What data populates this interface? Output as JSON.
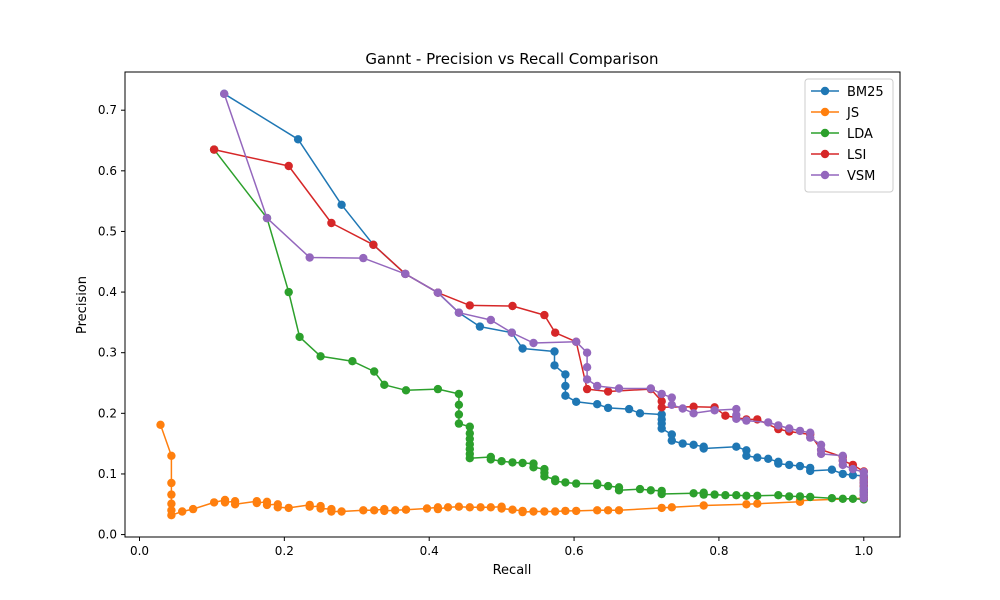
{
  "chart_data": {
    "type": "line",
    "title": "Gannt - Precision vs Recall Comparison",
    "xlabel": "Recall",
    "ylabel": "Precision",
    "xlim": [
      -0.02,
      1.05
    ],
    "ylim": [
      -0.004,
      0.763
    ],
    "xticks": [
      "0.0",
      "0.2",
      "0.4",
      "0.6",
      "0.8",
      "1.0"
    ],
    "yticks": [
      "0.0",
      "0.1",
      "0.2",
      "0.3",
      "0.4",
      "0.5",
      "0.6",
      "0.7"
    ],
    "grid": false,
    "legend": "upper right",
    "series": [
      {
        "name": "BM25",
        "color": "#1f77b4",
        "points": [
          [
            0.117,
            0.727
          ],
          [
            0.219,
            0.652
          ],
          [
            0.279,
            0.544
          ],
          [
            0.323,
            0.478
          ],
          [
            0.367,
            0.43
          ],
          [
            0.412,
            0.399
          ],
          [
            0.441,
            0.366
          ],
          [
            0.47,
            0.343
          ],
          [
            0.514,
            0.333
          ],
          [
            0.529,
            0.307
          ],
          [
            0.573,
            0.302
          ],
          [
            0.573,
            0.279
          ],
          [
            0.588,
            0.264
          ],
          [
            0.588,
            0.245
          ],
          [
            0.588,
            0.229
          ],
          [
            0.603,
            0.219
          ],
          [
            0.632,
            0.215
          ],
          [
            0.647,
            0.209
          ],
          [
            0.676,
            0.207
          ],
          [
            0.691,
            0.2
          ],
          [
            0.721,
            0.198
          ],
          [
            0.721,
            0.19
          ],
          [
            0.721,
            0.183
          ],
          [
            0.721,
            0.175
          ],
          [
            0.735,
            0.165
          ],
          [
            0.735,
            0.155
          ],
          [
            0.75,
            0.15
          ],
          [
            0.765,
            0.148
          ],
          [
            0.779,
            0.145
          ],
          [
            0.779,
            0.142
          ],
          [
            0.824,
            0.145
          ],
          [
            0.838,
            0.139
          ],
          [
            0.838,
            0.13
          ],
          [
            0.853,
            0.127
          ],
          [
            0.868,
            0.125
          ],
          [
            0.882,
            0.12
          ],
          [
            0.882,
            0.117
          ],
          [
            0.897,
            0.115
          ],
          [
            0.912,
            0.113
          ],
          [
            0.926,
            0.11
          ],
          [
            0.926,
            0.105
          ],
          [
            0.956,
            0.107
          ],
          [
            0.971,
            0.1
          ],
          [
            0.985,
            0.098
          ],
          [
            1.0,
            0.097
          ],
          [
            1.0,
            0.09
          ],
          [
            1.0,
            0.085
          ],
          [
            1.0,
            0.08
          ],
          [
            1.0,
            0.075
          ],
          [
            1.0,
            0.07
          ],
          [
            1.0,
            0.065
          ],
          [
            1.0,
            0.06
          ]
        ]
      },
      {
        "name": "JS",
        "color": "#ff7f0e",
        "points": [
          [
            0.029,
            0.181
          ],
          [
            0.044,
            0.13
          ],
          [
            0.044,
            0.085
          ],
          [
            0.044,
            0.066
          ],
          [
            0.044,
            0.051
          ],
          [
            0.044,
            0.04
          ],
          [
            0.044,
            0.032
          ],
          [
            0.059,
            0.038
          ],
          [
            0.074,
            0.042
          ],
          [
            0.103,
            0.053
          ],
          [
            0.118,
            0.057
          ],
          [
            0.118,
            0.053
          ],
          [
            0.132,
            0.055
          ],
          [
            0.132,
            0.05
          ],
          [
            0.162,
            0.055
          ],
          [
            0.162,
            0.052
          ],
          [
            0.176,
            0.054
          ],
          [
            0.176,
            0.049
          ],
          [
            0.191,
            0.05
          ],
          [
            0.191,
            0.045
          ],
          [
            0.206,
            0.044
          ],
          [
            0.235,
            0.049
          ],
          [
            0.235,
            0.046
          ],
          [
            0.25,
            0.047
          ],
          [
            0.25,
            0.043
          ],
          [
            0.265,
            0.042
          ],
          [
            0.265,
            0.038
          ],
          [
            0.279,
            0.038
          ],
          [
            0.309,
            0.04
          ],
          [
            0.324,
            0.04
          ],
          [
            0.338,
            0.042
          ],
          [
            0.338,
            0.039
          ],
          [
            0.353,
            0.04
          ],
          [
            0.368,
            0.041
          ],
          [
            0.397,
            0.043
          ],
          [
            0.412,
            0.045
          ],
          [
            0.412,
            0.042
          ],
          [
            0.426,
            0.045
          ],
          [
            0.441,
            0.046
          ],
          [
            0.456,
            0.045
          ],
          [
            0.471,
            0.045
          ],
          [
            0.485,
            0.045
          ],
          [
            0.5,
            0.046
          ],
          [
            0.5,
            0.043
          ],
          [
            0.515,
            0.041
          ],
          [
            0.529,
            0.039
          ],
          [
            0.529,
            0.037
          ],
          [
            0.544,
            0.038
          ],
          [
            0.559,
            0.038
          ],
          [
            0.574,
            0.038
          ],
          [
            0.588,
            0.039
          ],
          [
            0.603,
            0.039
          ],
          [
            0.632,
            0.04
          ],
          [
            0.647,
            0.04
          ],
          [
            0.662,
            0.04
          ],
          [
            0.721,
            0.044
          ],
          [
            0.735,
            0.045
          ],
          [
            0.779,
            0.048
          ],
          [
            0.838,
            0.05
          ],
          [
            0.853,
            0.051
          ],
          [
            0.912,
            0.054
          ],
          [
            0.912,
            0.056
          ],
          [
            1.0,
            0.06
          ]
        ]
      },
      {
        "name": "LDA",
        "color": "#2ca02c",
        "points": [
          [
            0.103,
            0.635
          ],
          [
            0.176,
            0.522
          ],
          [
            0.206,
            0.4
          ],
          [
            0.221,
            0.326
          ],
          [
            0.25,
            0.294
          ],
          [
            0.294,
            0.286
          ],
          [
            0.324,
            0.269
          ],
          [
            0.338,
            0.247
          ],
          [
            0.368,
            0.238
          ],
          [
            0.412,
            0.24
          ],
          [
            0.441,
            0.232
          ],
          [
            0.441,
            0.214
          ],
          [
            0.441,
            0.198
          ],
          [
            0.441,
            0.183
          ],
          [
            0.456,
            0.178
          ],
          [
            0.456,
            0.167
          ],
          [
            0.456,
            0.158
          ],
          [
            0.456,
            0.149
          ],
          [
            0.456,
            0.141
          ],
          [
            0.456,
            0.133
          ],
          [
            0.456,
            0.126
          ],
          [
            0.485,
            0.128
          ],
          [
            0.485,
            0.124
          ],
          [
            0.5,
            0.121
          ],
          [
            0.515,
            0.119
          ],
          [
            0.529,
            0.118
          ],
          [
            0.544,
            0.117
          ],
          [
            0.544,
            0.111
          ],
          [
            0.559,
            0.108
          ],
          [
            0.559,
            0.102
          ],
          [
            0.559,
            0.096
          ],
          [
            0.574,
            0.091
          ],
          [
            0.574,
            0.088
          ],
          [
            0.588,
            0.086
          ],
          [
            0.603,
            0.084
          ],
          [
            0.632,
            0.084
          ],
          [
            0.632,
            0.082
          ],
          [
            0.647,
            0.08
          ],
          [
            0.662,
            0.078
          ],
          [
            0.662,
            0.073
          ],
          [
            0.691,
            0.075
          ],
          [
            0.706,
            0.073
          ],
          [
            0.721,
            0.072
          ],
          [
            0.721,
            0.067
          ],
          [
            0.765,
            0.068
          ],
          [
            0.779,
            0.069
          ],
          [
            0.779,
            0.066
          ],
          [
            0.794,
            0.066
          ],
          [
            0.809,
            0.065
          ],
          [
            0.824,
            0.065
          ],
          [
            0.838,
            0.064
          ],
          [
            0.853,
            0.064
          ],
          [
            0.882,
            0.065
          ],
          [
            0.897,
            0.063
          ],
          [
            0.912,
            0.063
          ],
          [
            0.926,
            0.062
          ],
          [
            0.956,
            0.06
          ],
          [
            0.971,
            0.059
          ],
          [
            0.985,
            0.059
          ],
          [
            1.0,
            0.058
          ]
        ]
      },
      {
        "name": "LSI",
        "color": "#d62728",
        "points": [
          [
            0.103,
            0.635
          ],
          [
            0.206,
            0.608
          ],
          [
            0.265,
            0.514
          ],
          [
            0.323,
            0.478
          ],
          [
            0.367,
            0.43
          ],
          [
            0.412,
            0.399
          ],
          [
            0.456,
            0.378
          ],
          [
            0.515,
            0.377
          ],
          [
            0.559,
            0.362
          ],
          [
            0.574,
            0.333
          ],
          [
            0.603,
            0.318
          ],
          [
            0.618,
            0.24
          ],
          [
            0.647,
            0.236
          ],
          [
            0.706,
            0.24
          ],
          [
            0.721,
            0.22
          ],
          [
            0.721,
            0.21
          ],
          [
            0.765,
            0.211
          ],
          [
            0.794,
            0.21
          ],
          [
            0.809,
            0.196
          ],
          [
            0.838,
            0.19
          ],
          [
            0.853,
            0.19
          ],
          [
            0.882,
            0.174
          ],
          [
            0.897,
            0.17
          ],
          [
            0.926,
            0.165
          ],
          [
            0.941,
            0.14
          ],
          [
            0.971,
            0.128
          ],
          [
            0.971,
            0.122
          ],
          [
            0.985,
            0.115
          ],
          [
            1.0,
            0.104
          ],
          [
            1.0,
            0.095
          ],
          [
            1.0,
            0.09
          ],
          [
            1.0,
            0.085
          ],
          [
            1.0,
            0.08
          ],
          [
            1.0,
            0.072
          ],
          [
            1.0,
            0.066
          ],
          [
            1.0,
            0.06
          ]
        ]
      },
      {
        "name": "VSM",
        "color": "#9467bd",
        "points": [
          [
            0.117,
            0.727
          ],
          [
            0.176,
            0.522
          ],
          [
            0.235,
            0.457
          ],
          [
            0.309,
            0.456
          ],
          [
            0.367,
            0.43
          ],
          [
            0.412,
            0.399
          ],
          [
            0.441,
            0.366
          ],
          [
            0.485,
            0.354
          ],
          [
            0.514,
            0.333
          ],
          [
            0.544,
            0.316
          ],
          [
            0.603,
            0.318
          ],
          [
            0.618,
            0.3
          ],
          [
            0.618,
            0.276
          ],
          [
            0.618,
            0.256
          ],
          [
            0.632,
            0.245
          ],
          [
            0.662,
            0.241
          ],
          [
            0.706,
            0.241
          ],
          [
            0.721,
            0.232
          ],
          [
            0.735,
            0.226
          ],
          [
            0.735,
            0.214
          ],
          [
            0.75,
            0.208
          ],
          [
            0.765,
            0.2
          ],
          [
            0.794,
            0.205
          ],
          [
            0.824,
            0.207
          ],
          [
            0.824,
            0.197
          ],
          [
            0.824,
            0.191
          ],
          [
            0.838,
            0.188
          ],
          [
            0.868,
            0.185
          ],
          [
            0.882,
            0.18
          ],
          [
            0.897,
            0.175
          ],
          [
            0.912,
            0.171
          ],
          [
            0.926,
            0.168
          ],
          [
            0.926,
            0.16
          ],
          [
            0.941,
            0.148
          ],
          [
            0.941,
            0.14
          ],
          [
            0.941,
            0.133
          ],
          [
            0.971,
            0.13
          ],
          [
            0.971,
            0.122
          ],
          [
            0.971,
            0.115
          ],
          [
            0.985,
            0.108
          ],
          [
            1.0,
            0.103
          ],
          [
            1.0,
            0.097
          ],
          [
            1.0,
            0.09
          ],
          [
            1.0,
            0.084
          ],
          [
            1.0,
            0.078
          ],
          [
            1.0,
            0.072
          ],
          [
            1.0,
            0.066
          ],
          [
            1.0,
            0.06
          ]
        ]
      }
    ]
  }
}
